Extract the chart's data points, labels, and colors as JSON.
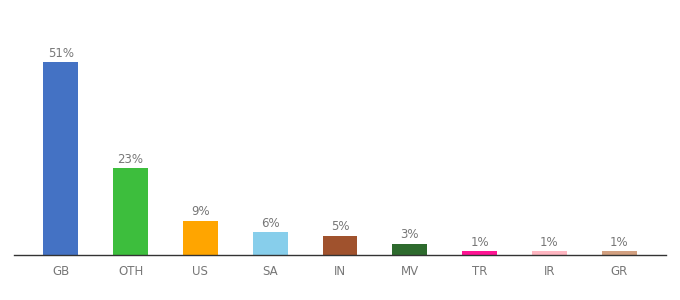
{
  "categories": [
    "GB",
    "OTH",
    "US",
    "SA",
    "IN",
    "MV",
    "TR",
    "IR",
    "GR"
  ],
  "values": [
    51,
    23,
    9,
    6,
    5,
    3,
    1,
    1,
    1
  ],
  "bar_colors": [
    "#4472C4",
    "#3DBE3D",
    "#FFA500",
    "#87CEEB",
    "#A0522D",
    "#2D6A2D",
    "#FF1493",
    "#FFB6C1",
    "#D2A080"
  ],
  "ylim": [
    0,
    58
  ],
  "background_color": "#ffffff",
  "label_fontsize": 8.5,
  "tick_fontsize": 8.5,
  "bar_width": 0.5
}
